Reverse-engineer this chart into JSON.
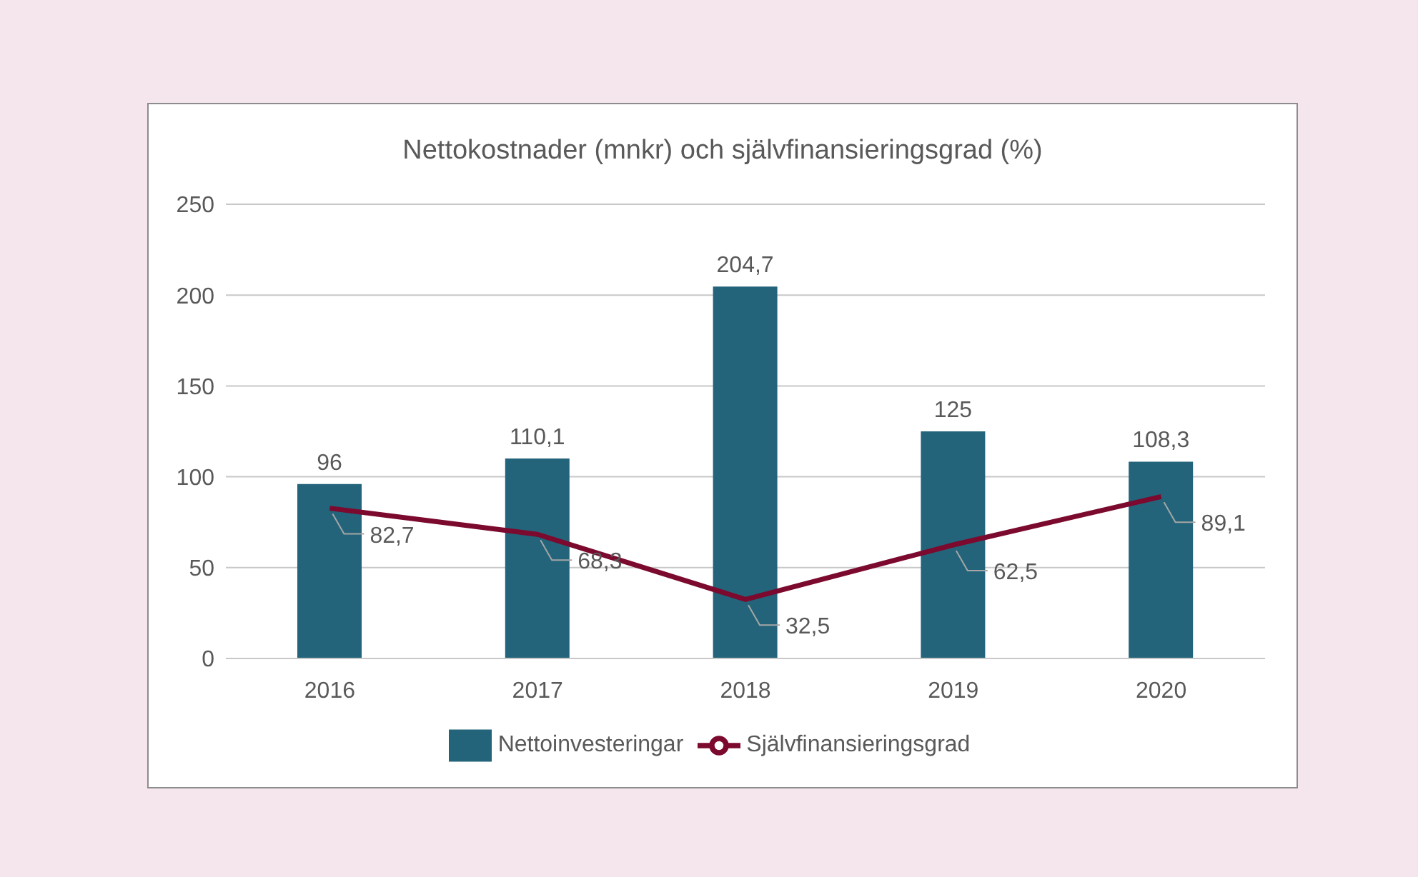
{
  "chart_data": {
    "type": "bar",
    "title": "Nettokostnader (mnkr) och självfinansieringsgrad (%)",
    "categories": [
      "2016",
      "2017",
      "2018",
      "2019",
      "2020"
    ],
    "series": [
      {
        "name": "Nettoinvesteringar",
        "color": "#23647a",
        "values": [
          96,
          110.1,
          204.7,
          125,
          108.3
        ],
        "value_labels": [
          "96",
          "110,1",
          "204,7",
          "125",
          "108,3"
        ]
      },
      {
        "name": "Självfinansieringsgrad",
        "type": "line",
        "color": "#7b0a2e",
        "values": [
          82.7,
          68.3,
          32.5,
          62.5,
          89.1
        ],
        "value_labels": [
          "82,7",
          "68,3",
          "32,5",
          "62,5",
          "89,1"
        ]
      }
    ],
    "ylim": [
      0,
      250
    ],
    "yticks": [
      0,
      50,
      100,
      150,
      200,
      250
    ],
    "grid": "y",
    "legend": "bottom",
    "marker": "none",
    "line_style": "solid"
  }
}
